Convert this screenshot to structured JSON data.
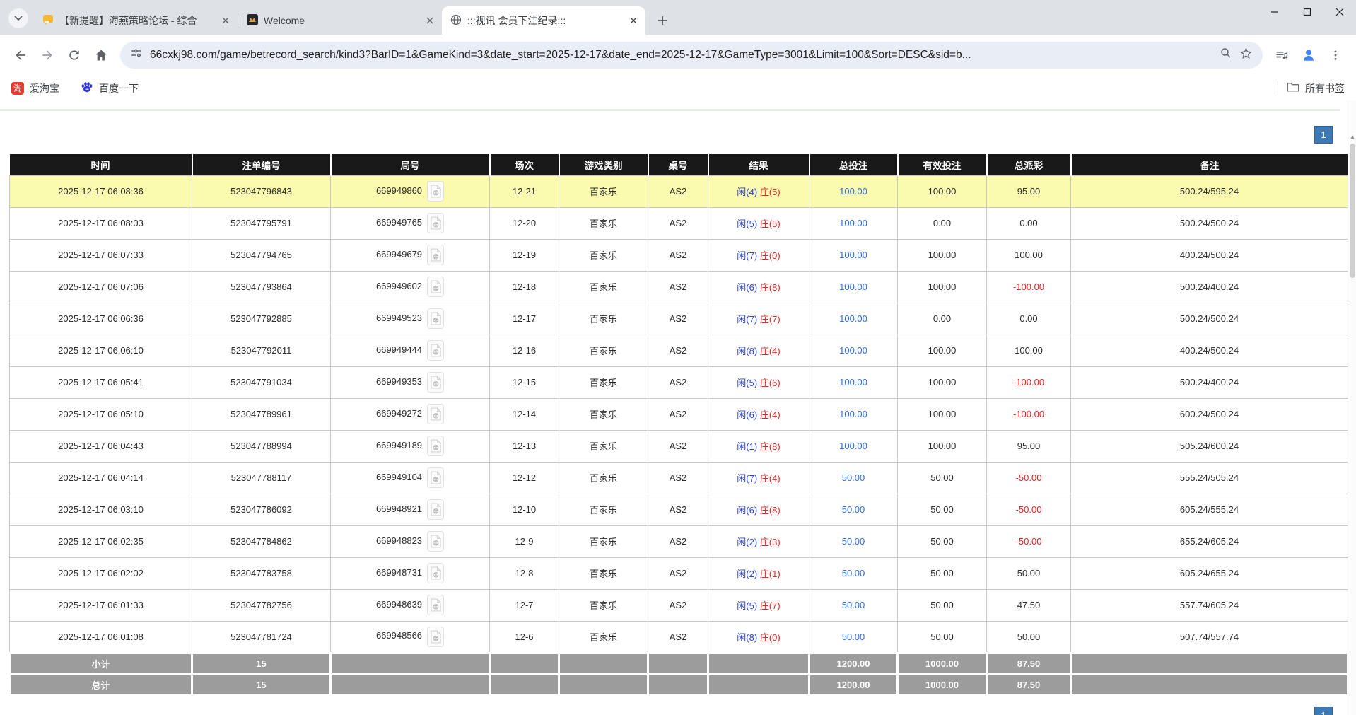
{
  "browser": {
    "tabs": [
      {
        "title": "【新提醒】海燕策略论坛 - 综合",
        "icon": "chat-bubble"
      },
      {
        "title": "Welcome",
        "icon": "dark-crest"
      },
      {
        "title": ":::视讯 会员下注纪录:::",
        "icon": "globe"
      }
    ],
    "url": "66cxkj98.com/game/betrecord_search/kind3?BarID=1&GameKind=3&date_start=2025-12-17&date_end=2025-12-17&GameType=3001&Limit=100&Sort=DESC&sid=b...",
    "bookmarks": [
      {
        "label": "爱淘宝",
        "icon": "taobao"
      },
      {
        "label": "百度一下",
        "icon": "baidu-paw"
      }
    ],
    "all_bookmarks_label": "所有书签"
  },
  "page": {
    "pagination_label": "1",
    "table": {
      "headers": [
        "时间",
        "注单编号",
        "局号",
        "场次",
        "游戏类别",
        "桌号",
        "结果",
        "总投注",
        "有效投注",
        "总派彩",
        "备注"
      ],
      "rows": [
        {
          "time": "2025-12-17 06:08:36",
          "bet_no": "523047796843",
          "round_no": "669949860",
          "session": "12-21",
          "game": "百家乐",
          "table_no": "AS2",
          "result_xian": "闲(4)",
          "result_zhuang": "庄(5)",
          "total_bet": "100.00",
          "valid_bet": "100.00",
          "payout": "95.00",
          "remark": "500.24/595.24",
          "highlight": true
        },
        {
          "time": "2025-12-17 06:08:03",
          "bet_no": "523047795791",
          "round_no": "669949765",
          "session": "12-20",
          "game": "百家乐",
          "table_no": "AS2",
          "result_xian": "闲(5)",
          "result_zhuang": "庄(5)",
          "total_bet": "100.00",
          "valid_bet": "0.00",
          "payout": "0.00",
          "remark": "500.24/500.24",
          "highlight": false
        },
        {
          "time": "2025-12-17 06:07:33",
          "bet_no": "523047794765",
          "round_no": "669949679",
          "session": "12-19",
          "game": "百家乐",
          "table_no": "AS2",
          "result_xian": "闲(7)",
          "result_zhuang": "庄(0)",
          "total_bet": "100.00",
          "valid_bet": "100.00",
          "payout": "100.00",
          "remark": "400.24/500.24",
          "highlight": false
        },
        {
          "time": "2025-12-17 06:07:06",
          "bet_no": "523047793864",
          "round_no": "669949602",
          "session": "12-18",
          "game": "百家乐",
          "table_no": "AS2",
          "result_xian": "闲(6)",
          "result_zhuang": "庄(8)",
          "total_bet": "100.00",
          "valid_bet": "100.00",
          "payout": "-100.00",
          "remark": "500.24/400.24",
          "highlight": false
        },
        {
          "time": "2025-12-17 06:06:36",
          "bet_no": "523047792885",
          "round_no": "669949523",
          "session": "12-17",
          "game": "百家乐",
          "table_no": "AS2",
          "result_xian": "闲(7)",
          "result_zhuang": "庄(7)",
          "total_bet": "100.00",
          "valid_bet": "0.00",
          "payout": "0.00",
          "remark": "500.24/500.24",
          "highlight": false
        },
        {
          "time": "2025-12-17 06:06:10",
          "bet_no": "523047792011",
          "round_no": "669949444",
          "session": "12-16",
          "game": "百家乐",
          "table_no": "AS2",
          "result_xian": "闲(8)",
          "result_zhuang": "庄(4)",
          "total_bet": "100.00",
          "valid_bet": "100.00",
          "payout": "100.00",
          "remark": "400.24/500.24",
          "highlight": false
        },
        {
          "time": "2025-12-17 06:05:41",
          "bet_no": "523047791034",
          "round_no": "669949353",
          "session": "12-15",
          "game": "百家乐",
          "table_no": "AS2",
          "result_xian": "闲(5)",
          "result_zhuang": "庄(6)",
          "total_bet": "100.00",
          "valid_bet": "100.00",
          "payout": "-100.00",
          "remark": "500.24/400.24",
          "highlight": false
        },
        {
          "time": "2025-12-17 06:05:10",
          "bet_no": "523047789961",
          "round_no": "669949272",
          "session": "12-14",
          "game": "百家乐",
          "table_no": "AS2",
          "result_xian": "闲(6)",
          "result_zhuang": "庄(4)",
          "total_bet": "100.00",
          "valid_bet": "100.00",
          "payout": "-100.00",
          "remark": "600.24/500.24",
          "highlight": false
        },
        {
          "time": "2025-12-17 06:04:43",
          "bet_no": "523047788994",
          "round_no": "669949189",
          "session": "12-13",
          "game": "百家乐",
          "table_no": "AS2",
          "result_xian": "闲(1)",
          "result_zhuang": "庄(8)",
          "total_bet": "100.00",
          "valid_bet": "100.00",
          "payout": "95.00",
          "remark": "505.24/600.24",
          "highlight": false
        },
        {
          "time": "2025-12-17 06:04:14",
          "bet_no": "523047788117",
          "round_no": "669949104",
          "session": "12-12",
          "game": "百家乐",
          "table_no": "AS2",
          "result_xian": "闲(7)",
          "result_zhuang": "庄(4)",
          "total_bet": "50.00",
          "valid_bet": "50.00",
          "payout": "-50.00",
          "remark": "555.24/505.24",
          "highlight": false
        },
        {
          "time": "2025-12-17 06:03:10",
          "bet_no": "523047786092",
          "round_no": "669948921",
          "session": "12-10",
          "game": "百家乐",
          "table_no": "AS2",
          "result_xian": "闲(6)",
          "result_zhuang": "庄(8)",
          "total_bet": "50.00",
          "valid_bet": "50.00",
          "payout": "-50.00",
          "remark": "605.24/555.24",
          "highlight": false
        },
        {
          "time": "2025-12-17 06:02:35",
          "bet_no": "523047784862",
          "round_no": "669948823",
          "session": "12-9",
          "game": "百家乐",
          "table_no": "AS2",
          "result_xian": "闲(2)",
          "result_zhuang": "庄(3)",
          "total_bet": "50.00",
          "valid_bet": "50.00",
          "payout": "-50.00",
          "remark": "655.24/605.24",
          "highlight": false
        },
        {
          "time": "2025-12-17 06:02:02",
          "bet_no": "523047783758",
          "round_no": "669948731",
          "session": "12-8",
          "game": "百家乐",
          "table_no": "AS2",
          "result_xian": "闲(2)",
          "result_zhuang": "庄(1)",
          "total_bet": "50.00",
          "valid_bet": "50.00",
          "payout": "50.00",
          "remark": "605.24/655.24",
          "highlight": false
        },
        {
          "time": "2025-12-17 06:01:33",
          "bet_no": "523047782756",
          "round_no": "669948639",
          "session": "12-7",
          "game": "百家乐",
          "table_no": "AS2",
          "result_xian": "闲(5)",
          "result_zhuang": "庄(7)",
          "total_bet": "50.00",
          "valid_bet": "50.00",
          "payout": "47.50",
          "remark": "557.74/605.24",
          "highlight": false
        },
        {
          "time": "2025-12-17 06:01:08",
          "bet_no": "523047781724",
          "round_no": "669948566",
          "session": "12-6",
          "game": "百家乐",
          "table_no": "AS2",
          "result_xian": "闲(8)",
          "result_zhuang": "庄(0)",
          "total_bet": "50.00",
          "valid_bet": "50.00",
          "payout": "50.00",
          "remark": "507.74/557.74",
          "highlight": false
        }
      ],
      "footer": [
        {
          "label": "小计",
          "count": "15",
          "total_bet": "1200.00",
          "valid_bet": "1000.00",
          "payout": "87.50"
        },
        {
          "label": "总计",
          "count": "15",
          "total_bet": "1200.00",
          "valid_bet": "1000.00",
          "payout": "87.50"
        }
      ]
    }
  },
  "colors": {
    "accent_blue": "#3d79b5",
    "bet_link_blue": "#2e6ee0",
    "player_blue": "#2741d6",
    "banker_red": "#e02a2a",
    "loss_red": "#f01f1f",
    "highlight_yellow": "#fbfbb0",
    "header_black": "#191919",
    "footer_gray": "#9c9c9c"
  }
}
